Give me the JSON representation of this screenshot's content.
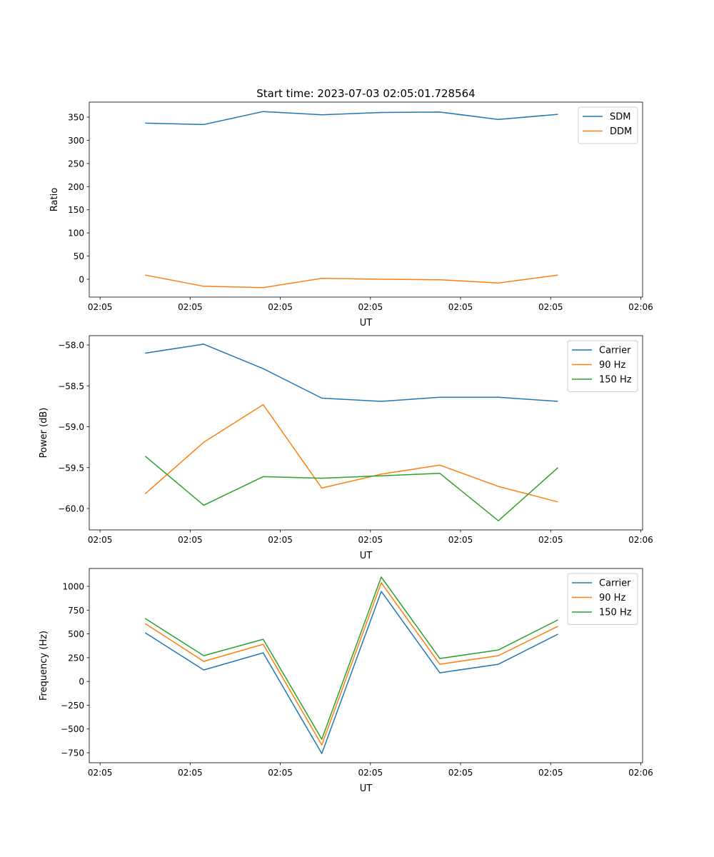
{
  "chart_data": [
    {
      "type": "line",
      "title": "Start time: 2023-07-03 02:05:01.728564",
      "xlabel": "UT",
      "ylabel": "Ratio",
      "x_unit": "seconds after 02:05:00",
      "x": [
        5.0,
        11.5,
        18.1,
        24.6,
        31.2,
        37.7,
        44.2,
        50.8
      ],
      "xlim": [
        -1.2,
        60.2
      ],
      "xticks": [
        0,
        10,
        20,
        30,
        40,
        50,
        60
      ],
      "xtick_labels": [
        "02:05",
        "02:05",
        "02:05",
        "02:05",
        "02:05",
        "02:05",
        "02:06"
      ],
      "ylim": [
        -38.5,
        382.4
      ],
      "yticks": [
        0,
        50,
        100,
        150,
        200,
        250,
        300,
        350
      ],
      "ytick_labels": [
        "0",
        "50",
        "100",
        "150",
        "200",
        "250",
        "300",
        "350"
      ],
      "legend_position": "top-right",
      "series": [
        {
          "name": "SDM",
          "color": "#1f77b4",
          "values": [
            337,
            334,
            362,
            355,
            360,
            361,
            345,
            356
          ]
        },
        {
          "name": "DDM",
          "color": "#ff7f0e",
          "values": [
            9,
            -15,
            -18,
            2,
            0,
            -1,
            -8,
            9
          ]
        }
      ]
    },
    {
      "type": "line",
      "title": "",
      "xlabel": "UT",
      "ylabel": "Power (dB)",
      "x_unit": "seconds after 02:05:00",
      "x": [
        5.0,
        11.5,
        18.1,
        24.6,
        31.2,
        37.7,
        44.2,
        50.8
      ],
      "xlim": [
        -1.2,
        60.2
      ],
      "xticks": [
        0,
        10,
        20,
        30,
        40,
        50,
        60
      ],
      "xtick_labels": [
        "02:05",
        "02:05",
        "02:05",
        "02:05",
        "02:05",
        "02:05",
        "02:06"
      ],
      "ylim": [
        -60.262,
        -57.886
      ],
      "yticks": [
        -60.0,
        -59.5,
        -59.0,
        -58.5,
        -58.0
      ],
      "ytick_labels": [
        "−60.0",
        "−59.5",
        "−59.0",
        "−58.5",
        "−58.0"
      ],
      "legend_position": "top-right",
      "series": [
        {
          "name": "Carrier",
          "color": "#1f77b4",
          "values": [
            -58.1,
            -57.99,
            -58.29,
            -58.65,
            -58.69,
            -58.64,
            -58.64,
            -58.69
          ]
        },
        {
          "name": "90 Hz",
          "color": "#ff7f0e",
          "values": [
            -59.82,
            -59.19,
            -58.73,
            -59.75,
            -59.58,
            -59.47,
            -59.73,
            -59.92
          ]
        },
        {
          "name": "150 Hz",
          "color": "#2ca02c",
          "values": [
            -59.36,
            -59.96,
            -59.61,
            -59.63,
            -59.6,
            -59.57,
            -60.15,
            -59.5
          ]
        }
      ]
    },
    {
      "type": "line",
      "title": "",
      "xlabel": "UT",
      "ylabel": "Frequency (Hz)",
      "x_unit": "seconds after 02:05:00",
      "x": [
        5.0,
        11.5,
        18.1,
        24.6,
        31.2,
        37.7,
        44.2,
        50.8
      ],
      "xlim": [
        -1.2,
        60.2
      ],
      "xticks": [
        0,
        10,
        20,
        30,
        40,
        50,
        60
      ],
      "xtick_labels": [
        "02:05",
        "02:05",
        "02:05",
        "02:05",
        "02:05",
        "02:05",
        "02:06"
      ],
      "ylim": [
        -855,
        1188
      ],
      "yticks": [
        -750,
        -500,
        -250,
        0,
        250,
        500,
        750,
        1000
      ],
      "ytick_labels": [
        "−750",
        "−500",
        "−250",
        "0",
        "250",
        "500",
        "750",
        "1000"
      ],
      "legend_position": "top-right",
      "series": [
        {
          "name": "Carrier",
          "color": "#1f77b4",
          "values": [
            512,
            121,
            301,
            -758,
            947,
            91,
            181,
            497
          ]
        },
        {
          "name": "90 Hz",
          "color": "#ff7f0e",
          "values": [
            609,
            211,
            391,
            -668,
            1038,
            181,
            271,
            580
          ]
        },
        {
          "name": "150 Hz",
          "color": "#2ca02c",
          "values": [
            662,
            271,
            444,
            -608,
            1098,
            241,
            331,
            647
          ]
        }
      ]
    }
  ]
}
